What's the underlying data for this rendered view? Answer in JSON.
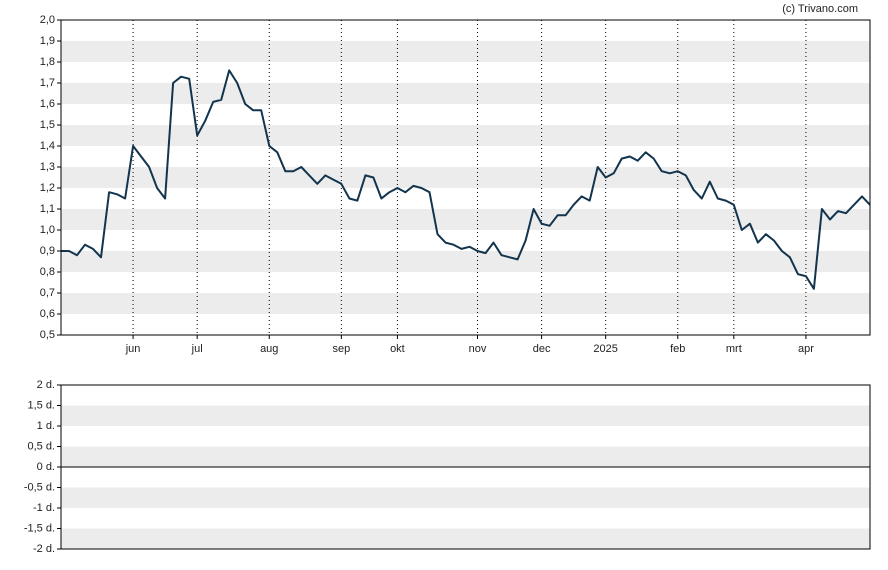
{
  "chart_data": [
    {
      "type": "line",
      "credit": "(c) Trivano.com",
      "bands": true,
      "vgrid": true,
      "ylim": [
        0.5,
        2.0
      ],
      "yticks": [
        {
          "value": 2.0,
          "label": "2,0"
        },
        {
          "value": 1.9,
          "label": "1,9"
        },
        {
          "value": 1.8,
          "label": "1,8"
        },
        {
          "value": 1.7,
          "label": "1,7"
        },
        {
          "value": 1.6,
          "label": "1,6"
        },
        {
          "value": 1.5,
          "label": "1,5"
        },
        {
          "value": 1.4,
          "label": "1,4"
        },
        {
          "value": 1.3,
          "label": "1,3"
        },
        {
          "value": 1.2,
          "label": "1,2"
        },
        {
          "value": 1.1,
          "label": "1,1"
        },
        {
          "value": 1.0,
          "label": "1,0"
        },
        {
          "value": 0.9,
          "label": "0,9"
        },
        {
          "value": 0.8,
          "label": "0,8"
        },
        {
          "value": 0.7,
          "label": "0,7"
        },
        {
          "value": 0.6,
          "label": "0,6"
        },
        {
          "value": 0.5,
          "label": "0,5"
        }
      ],
      "categories": [
        null,
        null,
        null,
        null,
        null,
        null,
        null,
        null,
        null,
        "jun",
        null,
        null,
        null,
        null,
        null,
        null,
        null,
        "jul",
        null,
        null,
        null,
        null,
        null,
        null,
        null,
        null,
        "aug",
        null,
        null,
        null,
        null,
        null,
        null,
        null,
        null,
        "sep",
        null,
        null,
        null,
        null,
        null,
        null,
        "okt",
        null,
        null,
        null,
        null,
        null,
        null,
        null,
        null,
        null,
        "nov",
        null,
        null,
        null,
        null,
        null,
        null,
        null,
        "dec",
        null,
        null,
        null,
        null,
        null,
        null,
        null,
        "2025",
        null,
        null,
        null,
        null,
        null,
        null,
        null,
        null,
        "feb",
        null,
        null,
        null,
        null,
        null,
        null,
        "mrt",
        null,
        null,
        null,
        null,
        null,
        null,
        null,
        null,
        "apr",
        null,
        null,
        null,
        null,
        null,
        null,
        null,
        null
      ],
      "series": [
        {
          "color": "#12344d",
          "values": [
            0.9,
            0.9,
            0.88,
            0.93,
            0.91,
            0.87,
            1.18,
            1.17,
            1.15,
            1.4,
            1.35,
            1.3,
            1.2,
            1.15,
            1.7,
            1.73,
            1.72,
            1.45,
            1.52,
            1.61,
            1.62,
            1.76,
            1.7,
            1.6,
            1.57,
            1.57,
            1.4,
            1.37,
            1.28,
            1.28,
            1.3,
            1.26,
            1.22,
            1.26,
            1.24,
            1.22,
            1.15,
            1.14,
            1.26,
            1.25,
            1.15,
            1.18,
            1.2,
            1.18,
            1.21,
            1.2,
            1.18,
            0.98,
            0.94,
            0.93,
            0.91,
            0.92,
            0.9,
            0.89,
            0.94,
            0.88,
            0.87,
            0.86,
            0.95,
            1.1,
            1.03,
            1.02,
            1.07,
            1.07,
            1.12,
            1.16,
            1.14,
            1.3,
            1.25,
            1.27,
            1.34,
            1.35,
            1.33,
            1.37,
            1.34,
            1.28,
            1.27,
            1.28,
            1.26,
            1.19,
            1.15,
            1.23,
            1.15,
            1.14,
            1.12,
            1.0,
            1.03,
            0.94,
            0.98,
            0.95,
            0.9,
            0.87,
            0.79,
            0.78,
            0.72,
            1.1,
            1.05,
            1.09,
            1.08,
            1.12,
            1.16,
            1.12
          ]
        }
      ]
    },
    {
      "type": "line",
      "bands": true,
      "zero_line": true,
      "ylim": [
        -2,
        2
      ],
      "yticks": [
        {
          "value": 2,
          "label": "2 d."
        },
        {
          "value": 1.5,
          "label": "1,5 d."
        },
        {
          "value": 1,
          "label": "1 d."
        },
        {
          "value": 0.5,
          "label": "0,5 d."
        },
        {
          "value": 0,
          "label": "0 d."
        },
        {
          "value": -0.5,
          "label": "-0,5 d."
        },
        {
          "value": -1,
          "label": "-1 d."
        },
        {
          "value": -1.5,
          "label": "-1,5 d."
        },
        {
          "value": -2,
          "label": "-2 d."
        }
      ],
      "series": []
    }
  ]
}
